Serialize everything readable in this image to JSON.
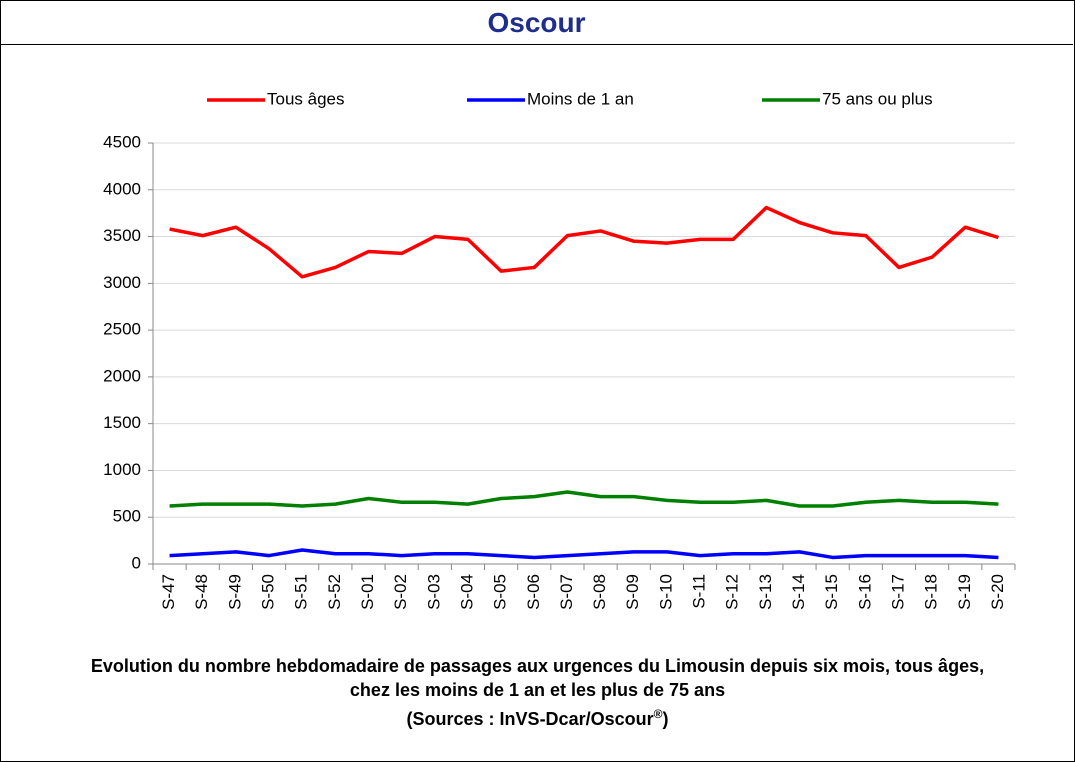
{
  "header": {
    "title": "Oscour"
  },
  "chart_data": {
    "type": "line",
    "categories": [
      "S-47",
      "S-48",
      "S-49",
      "S-50",
      "S-51",
      "S-52",
      "S-01",
      "S-02",
      "S-03",
      "S-04",
      "S-05",
      "S-06",
      "S-07",
      "S-08",
      "S-09",
      "S-10",
      "S-11",
      "S-12",
      "S-13",
      "S-14",
      "S-15",
      "S-16",
      "S-17",
      "S-18",
      "S-19",
      "S-20"
    ],
    "series": [
      {
        "name": "Tous âges",
        "color": "#ff0000",
        "values": [
          3580,
          3510,
          3600,
          3370,
          3070,
          3170,
          3340,
          3320,
          3500,
          3470,
          3130,
          3170,
          3510,
          3560,
          3450,
          3430,
          3470,
          3470,
          3810,
          3650,
          3540,
          3510,
          3170,
          3280,
          3600,
          3490
        ]
      },
      {
        "name": "Moins de 1 an",
        "color": "#0000ff",
        "values": [
          90,
          110,
          130,
          90,
          150,
          110,
          110,
          90,
          110,
          110,
          90,
          70,
          90,
          110,
          130,
          130,
          90,
          110,
          110,
          130,
          70,
          90,
          90,
          90,
          90,
          70
        ]
      },
      {
        "name": "75 ans ou plus",
        "color": "#008000",
        "values": [
          620,
          640,
          640,
          640,
          620,
          640,
          700,
          660,
          660,
          640,
          700,
          720,
          770,
          720,
          720,
          680,
          660,
          660,
          680,
          620,
          620,
          660,
          680,
          660,
          660,
          640
        ]
      }
    ],
    "ylim": [
      0,
      4500
    ],
    "yticks": [
      0,
      500,
      1000,
      1500,
      2000,
      2500,
      3000,
      3500,
      4000,
      4500
    ],
    "grid": true,
    "legend": "top"
  },
  "caption": {
    "text": "Evolution du nombre hebdomadaire de passages aux urgences du Limousin depuis six mois, tous âges, chez les moins de 1 an et les plus de 75 ans",
    "source": "(Sources : InVS-Dcar/Oscour",
    "source_mark": "®",
    "source_end": ")"
  }
}
